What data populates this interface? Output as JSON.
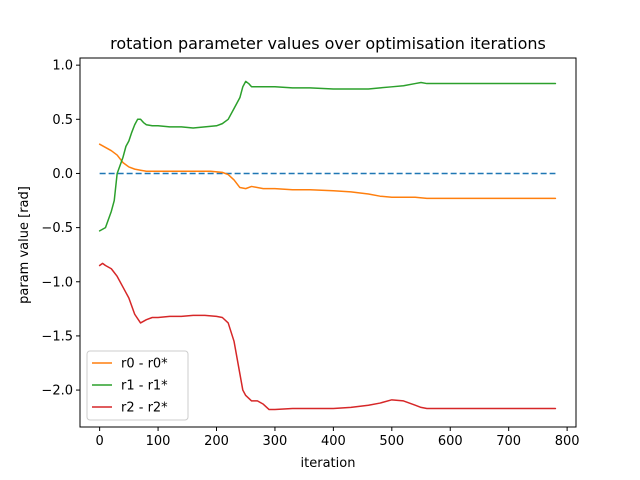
{
  "chart_data": {
    "type": "line",
    "title": "rotation parameter values over optimisation iterations",
    "xlabel": "iteration",
    "ylabel": "param value [rad]",
    "xlim": [
      -33.6,
      815.2
    ],
    "ylim": [
      -2.341,
      1.066
    ],
    "x_ticks": [
      0,
      100,
      200,
      300,
      400,
      500,
      600,
      700,
      800
    ],
    "y_ticks": [
      -2.0,
      -1.5,
      -1.0,
      -0.5,
      0.0,
      0.5,
      1.0
    ],
    "x_tick_labels": [
      "0",
      "100",
      "200",
      "300",
      "400",
      "500",
      "600",
      "700",
      "800"
    ],
    "y_tick_labels": [
      "−2.0",
      "−1.5",
      "−1.0",
      "−0.5",
      "0.0",
      "0.5",
      "1.0"
    ],
    "legend_position": "lower-left",
    "reference_line": {
      "name": "zero-reference",
      "y": 0.0,
      "style": "dashed",
      "color": "#1f77b4"
    },
    "series": [
      {
        "name": "r0 - r0*",
        "color": "#ff7f0e",
        "x": [
          0,
          10,
          20,
          30,
          40,
          50,
          60,
          70,
          80,
          100,
          130,
          160,
          190,
          210,
          220,
          230,
          240,
          250,
          260,
          280,
          300,
          330,
          360,
          400,
          430,
          460,
          480,
          500,
          520,
          540,
          560,
          600,
          650,
          700,
          780
        ],
        "y": [
          0.27,
          0.24,
          0.21,
          0.17,
          0.1,
          0.06,
          0.04,
          0.03,
          0.02,
          0.02,
          0.02,
          0.02,
          0.02,
          0.01,
          -0.01,
          -0.06,
          -0.13,
          -0.14,
          -0.12,
          -0.14,
          -0.14,
          -0.15,
          -0.15,
          -0.16,
          -0.17,
          -0.19,
          -0.21,
          -0.22,
          -0.22,
          -0.22,
          -0.23,
          -0.23,
          -0.23,
          -0.23,
          -0.23
        ]
      },
      {
        "name": "r1 - r1*",
        "color": "#2ca02c",
        "x": [
          0,
          10,
          20,
          25,
          30,
          40,
          45,
          50,
          55,
          60,
          65,
          70,
          75,
          80,
          90,
          100,
          120,
          140,
          160,
          180,
          200,
          210,
          220,
          230,
          240,
          245,
          250,
          255,
          260,
          270,
          280,
          300,
          330,
          360,
          400,
          430,
          460,
          480,
          500,
          520,
          540,
          550,
          560,
          600,
          650,
          700,
          780
        ],
        "y": [
          -0.53,
          -0.5,
          -0.35,
          -0.25,
          0.0,
          0.15,
          0.25,
          0.3,
          0.38,
          0.45,
          0.5,
          0.5,
          0.47,
          0.45,
          0.44,
          0.44,
          0.43,
          0.43,
          0.42,
          0.43,
          0.44,
          0.46,
          0.5,
          0.6,
          0.7,
          0.8,
          0.85,
          0.83,
          0.8,
          0.8,
          0.8,
          0.8,
          0.79,
          0.79,
          0.78,
          0.78,
          0.78,
          0.79,
          0.8,
          0.81,
          0.83,
          0.84,
          0.83,
          0.83,
          0.83,
          0.83,
          0.83
        ]
      },
      {
        "name": "r2 - r2*",
        "color": "#d62728",
        "x": [
          0,
          5,
          10,
          20,
          30,
          40,
          50,
          60,
          70,
          80,
          90,
          100,
          120,
          140,
          160,
          180,
          200,
          210,
          220,
          230,
          240,
          245,
          250,
          260,
          270,
          280,
          290,
          300,
          330,
          360,
          400,
          430,
          460,
          480,
          500,
          520,
          540,
          550,
          560,
          600,
          650,
          700,
          780
        ],
        "y": [
          -0.85,
          -0.83,
          -0.85,
          -0.88,
          -0.95,
          -1.05,
          -1.15,
          -1.3,
          -1.38,
          -1.35,
          -1.33,
          -1.33,
          -1.32,
          -1.32,
          -1.31,
          -1.31,
          -1.32,
          -1.33,
          -1.38,
          -1.55,
          -1.85,
          -2.0,
          -2.05,
          -2.1,
          -2.1,
          -2.13,
          -2.18,
          -2.18,
          -2.17,
          -2.17,
          -2.17,
          -2.16,
          -2.14,
          -2.12,
          -2.09,
          -2.1,
          -2.14,
          -2.16,
          -2.17,
          -2.17,
          -2.17,
          -2.17,
          -2.17
        ]
      }
    ]
  }
}
